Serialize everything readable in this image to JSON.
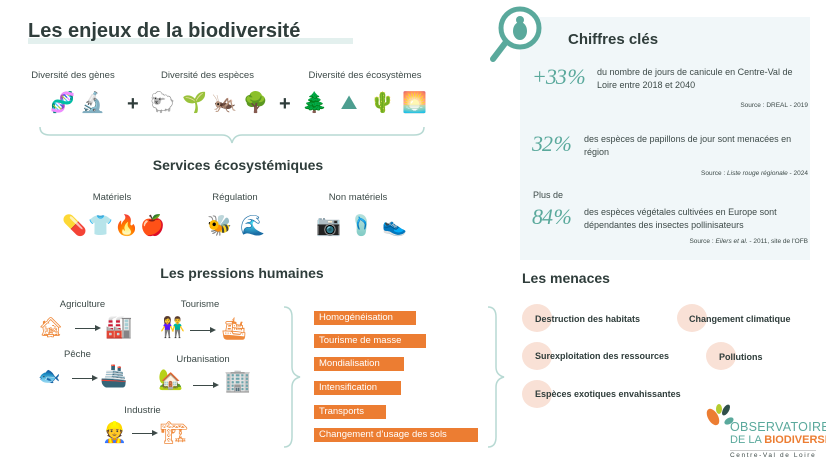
{
  "title": "Les enjeux de la biodiversité",
  "diversity": {
    "genes": "Diversité des gènes",
    "species": "Diversité des espèces",
    "ecosystems": "Diversité des écosystèmes",
    "plus": "+"
  },
  "services": {
    "title": "Services écosystémiques",
    "materiels": "Matériels",
    "regulation": "Régulation",
    "non_materiels": "Non matériels"
  },
  "pressions": {
    "title": "Les pressions humaines",
    "agriculture": "Agriculture",
    "tourisme": "Tourisme",
    "peche": "Pêche",
    "urbanisation": "Urbanisation",
    "industrie": "Industrie",
    "bars": [
      "Homogénéisation",
      "Tourisme de masse",
      "Mondialisation",
      "Intensification",
      "Transports",
      "Changement d’usage des sols"
    ]
  },
  "chiffres": {
    "title": "Chiffres clés",
    "s1": {
      "value": "+33 %",
      "text": "du nombre de jours de canicule en Centre-Val de Loire entre 2018 et 2040",
      "source": "Source : DREAL - 2019"
    },
    "s2": {
      "value": "32 %",
      "text": "des espèces de papillons de jour sont menacées en région",
      "source_prefix": "Source : ",
      "source_italic": "Liste rouge régionale",
      "source_suffix": " - 2024"
    },
    "s3": {
      "prefix": "Plus de",
      "value": "84 %",
      "text": "des espèces végétales cultivées en Europe sont dépendantes des insectes pollinisateurs",
      "source_prefix": "Source : ",
      "source_italic": "Eilers et al.",
      "source_suffix": " - 2011, site de l'OFB"
    }
  },
  "menaces": {
    "title": "Les menaces",
    "items": [
      "Destruction des habitats",
      "Changement climatique",
      "Surexploitation des ressources",
      "Pollutions",
      "Espèces exotiques envahissantes"
    ]
  },
  "logo": {
    "line1": "OBSERVATOIRE",
    "line2a": "DE LA ",
    "line2b": "BIODIVERSITÉ",
    "line3": "Centre-Val de Loire"
  },
  "colors": {
    "teal": "#4d9e90",
    "orange": "#ec7d32",
    "panel": "#f1f7f9",
    "threat": "#f9e1d6"
  }
}
